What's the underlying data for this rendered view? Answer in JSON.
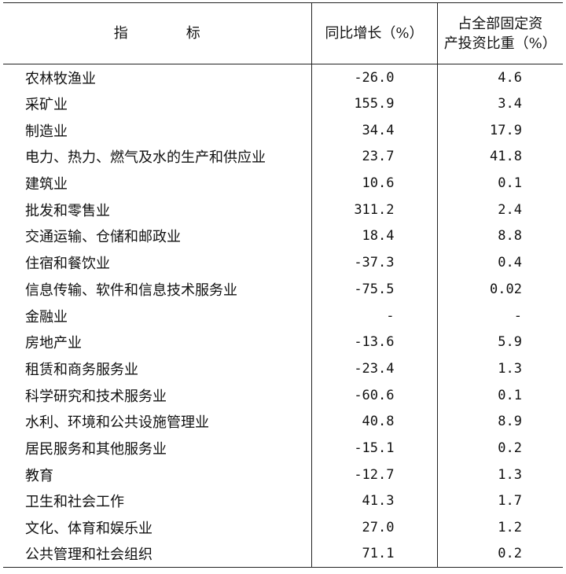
{
  "table": {
    "headers": {
      "indicator_part1": "指",
      "indicator_part2": "标",
      "yoy": "同比增长（%）",
      "share_line1": "占全部固定资",
      "share_line2": "产投资比重（%）"
    },
    "rows": [
      {
        "name": "农林牧渔业",
        "yoy": "-26.0",
        "share": "4.6"
      },
      {
        "name": "采矿业",
        "yoy": "155.9",
        "share": "3.4"
      },
      {
        "name": "制造业",
        "yoy": "34.4",
        "share": "17.9"
      },
      {
        "name": "电力、热力、燃气及水的生产和供应业",
        "yoy": "23.7",
        "share": "41.8"
      },
      {
        "name": "建筑业",
        "yoy": "10.6",
        "share": "0.1"
      },
      {
        "name": "批发和零售业",
        "yoy": "311.2",
        "share": "2.4"
      },
      {
        "name": "交通运输、仓储和邮政业",
        "yoy": "18.4",
        "share": "8.8"
      },
      {
        "name": "住宿和餐饮业",
        "yoy": "-37.3",
        "share": "0.4"
      },
      {
        "name": "信息传输、软件和信息技术服务业",
        "yoy": "-75.5",
        "share": "0.02"
      },
      {
        "name": "金融业",
        "yoy": "-",
        "share": "-"
      },
      {
        "name": "房地产业",
        "yoy": "-13.6",
        "share": "5.9"
      },
      {
        "name": "租赁和商务服务业",
        "yoy": "-23.4",
        "share": "1.3"
      },
      {
        "name": "科学研究和技术服务业",
        "yoy": "-60.6",
        "share": "0.1"
      },
      {
        "name": "水利、环境和公共设施管理业",
        "yoy": "40.8",
        "share": "8.9"
      },
      {
        "name": "居民服务和其他服务业",
        "yoy": "-15.1",
        "share": "0.2"
      },
      {
        "name": "教育",
        "yoy": "-12.7",
        "share": "1.3"
      },
      {
        "name": "卫生和社会工作",
        "yoy": "41.3",
        "share": "1.7"
      },
      {
        "name": "文化、体育和娱乐业",
        "yoy": "27.0",
        "share": "1.2"
      },
      {
        "name": "公共管理和社会组织",
        "yoy": "71.1",
        "share": "0.2"
      }
    ]
  }
}
